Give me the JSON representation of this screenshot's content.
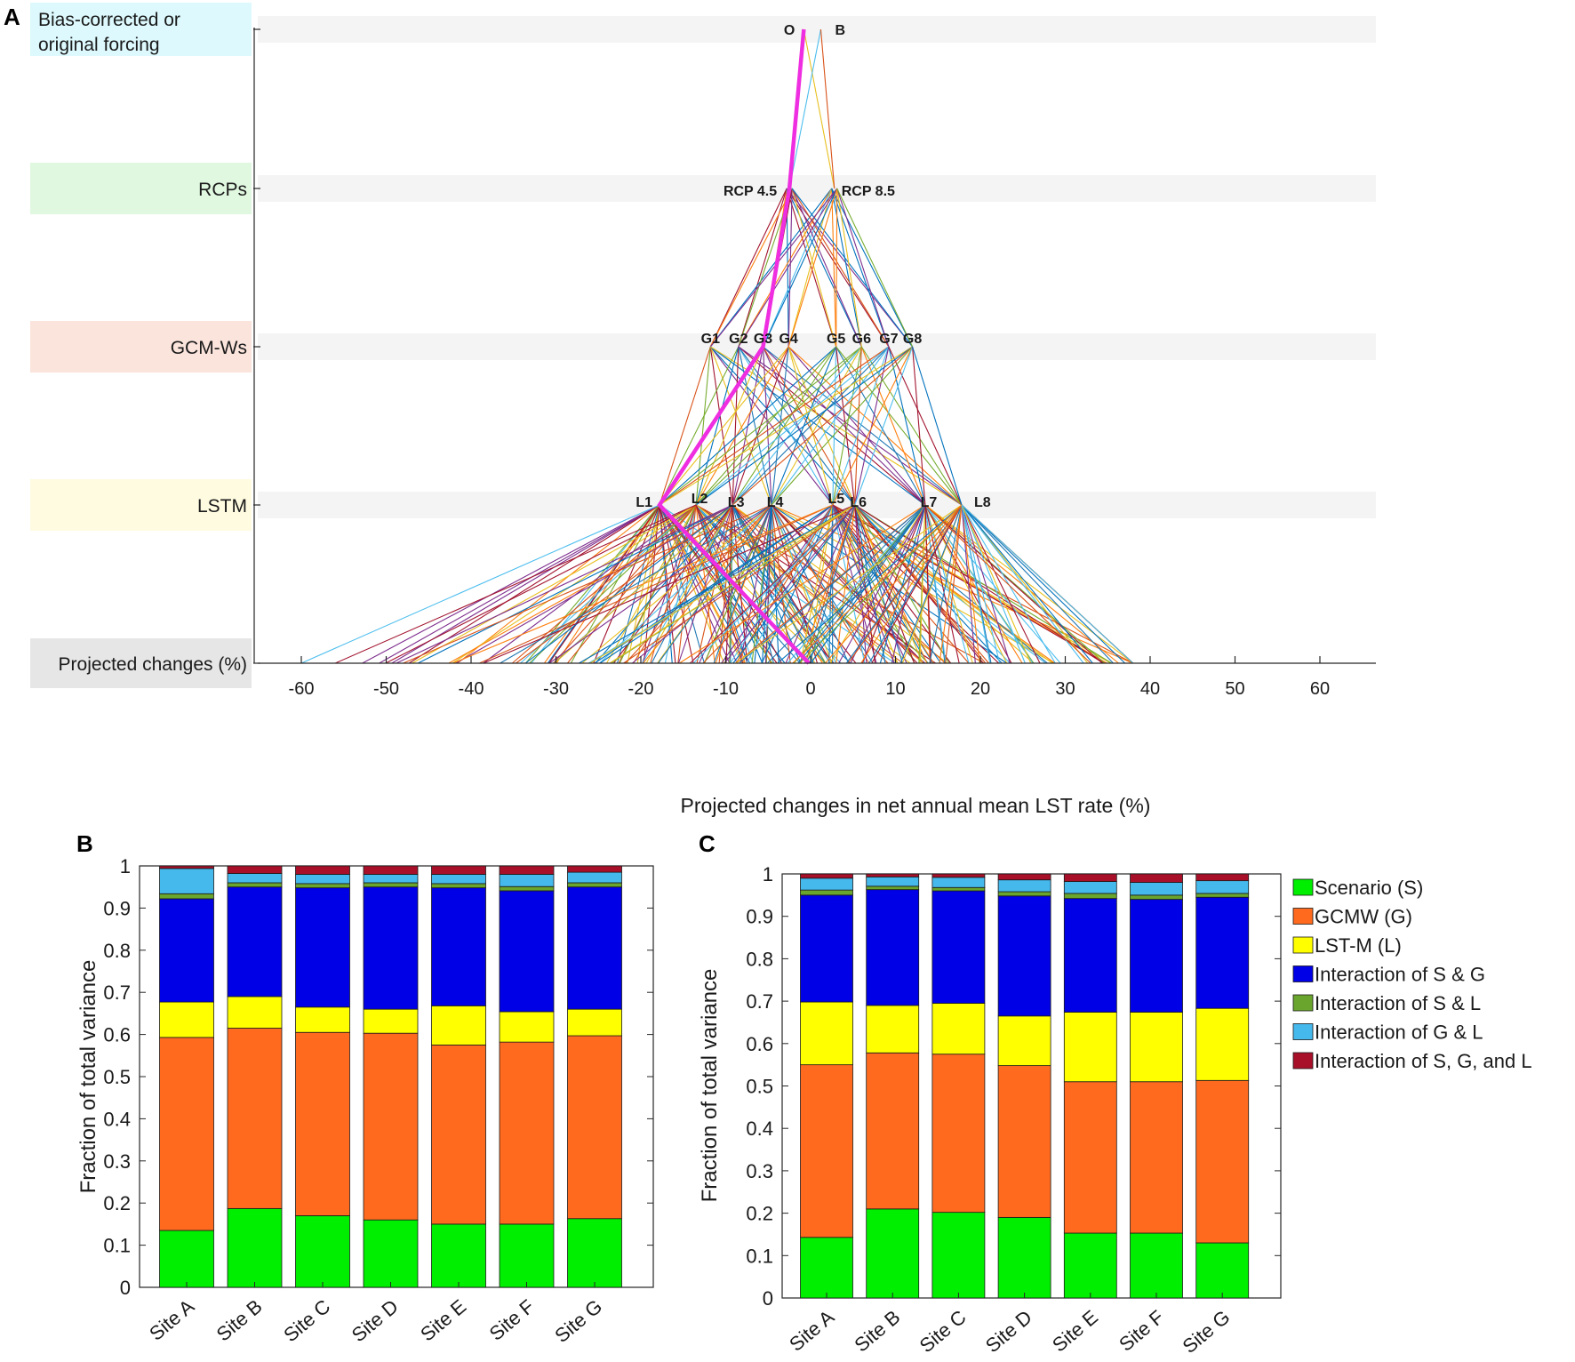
{
  "chart_data": [
    {
      "panel": "A",
      "type": "cascade-tree",
      "xlabel": "Projected changes in net annual mean LST rate (%)",
      "xlim": [
        -66,
        66
      ],
      "xticks": [
        "-60",
        "-50",
        "-40",
        "-30",
        "-20",
        "-10",
        "0",
        "10",
        "20",
        "30",
        "40",
        "50",
        "60"
      ],
      "levels": [
        {
          "label": "Bias-corrected or original forcing",
          "label_lines": [
            "Bias-corrected or",
            "original forcing"
          ],
          "color": "#ddf9fd"
        },
        {
          "label": "RCPs",
          "color": "#e0f7e0"
        },
        {
          "label": "GCM-Ws",
          "color": "#fbe4dc"
        },
        {
          "label": "LSTM",
          "color": "#fefbe0"
        },
        {
          "label": "Projected changes (%)",
          "color": "#e6e6e6"
        }
      ],
      "forcing_nodes": [
        {
          "name": "O",
          "x": -0.8
        },
        {
          "name": "B",
          "x": 1.2
        }
      ],
      "rcp_nodes": [
        {
          "name": "RCP 4.5",
          "x": -2.5
        },
        {
          "name": "RCP 8.5",
          "x": 2.8
        }
      ],
      "gcm_nodes": [
        {
          "name": "G1",
          "x": -11.8
        },
        {
          "name": "G2",
          "x": -8.5
        },
        {
          "name": "G3",
          "x": -5.6
        },
        {
          "name": "G4",
          "x": -2.6
        },
        {
          "name": "G5",
          "x": 3.0
        },
        {
          "name": "G6",
          "x": 6.0
        },
        {
          "name": "G7",
          "x": 9.2
        },
        {
          "name": "G8",
          "x": 12.0
        }
      ],
      "lstm_nodes": [
        {
          "name": "L1",
          "x": -17.8
        },
        {
          "name": "L2",
          "x": -13.5
        },
        {
          "name": "L3",
          "x": -9.2
        },
        {
          "name": "L4",
          "x": -4.6
        },
        {
          "name": "L5",
          "x": 2.6
        },
        {
          "name": "L6",
          "x": 5.2
        },
        {
          "name": "L7",
          "x": 13.5
        },
        {
          "name": "L8",
          "x": 17.8
        }
      ],
      "projected_range": [
        -60,
        38
      ],
      "highlight_path": [
        "O",
        "RCP 4.5",
        "G3",
        "L1",
        -0.2
      ]
    },
    {
      "panel": "B",
      "type": "stacked-bar",
      "ylabel": "Fraction of total variance",
      "ylim": [
        0,
        1
      ],
      "yticks": [
        "0",
        "0.1",
        "0.2",
        "0.3",
        "0.4",
        "0.5",
        "0.6",
        "0.7",
        "0.8",
        "0.9",
        "1"
      ],
      "categories": [
        "Site A",
        "Site B",
        "Site C",
        "Site D",
        "Site E",
        "Site F",
        "Site G"
      ],
      "series": [
        {
          "name": "Scenario (S)",
          "values": [
            0.135,
            0.187,
            0.17,
            0.16,
            0.15,
            0.15,
            0.163
          ]
        },
        {
          "name": "GCMW (G)",
          "values": [
            0.458,
            0.428,
            0.435,
            0.443,
            0.425,
            0.432,
            0.434
          ]
        },
        {
          "name": "LST-M (L)",
          "values": [
            0.084,
            0.075,
            0.06,
            0.057,
            0.093,
            0.072,
            0.063
          ]
        },
        {
          "name": "Interaction of S & G",
          "values": [
            0.245,
            0.26,
            0.283,
            0.29,
            0.28,
            0.287,
            0.29
          ]
        },
        {
          "name": "Interaction of S & L",
          "values": [
            0.012,
            0.01,
            0.01,
            0.01,
            0.01,
            0.01,
            0.01
          ]
        },
        {
          "name": "Interaction of G & L",
          "values": [
            0.06,
            0.022,
            0.022,
            0.02,
            0.022,
            0.029,
            0.025
          ]
        },
        {
          "name": "Interaction of S, G, and L",
          "values": [
            0.006,
            0.018,
            0.02,
            0.02,
            0.02,
            0.02,
            0.015
          ]
        }
      ]
    },
    {
      "panel": "C",
      "type": "stacked-bar",
      "ylabel": "Fraction of total variance",
      "ylim": [
        0,
        1
      ],
      "yticks": [
        "0",
        "0.1",
        "0.2",
        "0.3",
        "0.4",
        "0.5",
        "0.6",
        "0.7",
        "0.8",
        "0.9",
        "1"
      ],
      "categories": [
        "Site A",
        "Site B",
        "Site C",
        "Site D",
        "Site E",
        "Site F",
        "Site G"
      ],
      "series": [
        {
          "name": "Scenario (S)",
          "values": [
            0.143,
            0.21,
            0.202,
            0.19,
            0.153,
            0.153,
            0.13
          ]
        },
        {
          "name": "GCMW (G)",
          "values": [
            0.407,
            0.368,
            0.373,
            0.358,
            0.357,
            0.357,
            0.383
          ]
        },
        {
          "name": "LST-M (L)",
          "values": [
            0.148,
            0.112,
            0.12,
            0.117,
            0.164,
            0.164,
            0.17
          ]
        },
        {
          "name": "Interaction of S & G",
          "values": [
            0.252,
            0.273,
            0.265,
            0.283,
            0.268,
            0.266,
            0.262
          ]
        },
        {
          "name": "Interaction of S & L",
          "values": [
            0.012,
            0.008,
            0.008,
            0.01,
            0.012,
            0.01,
            0.009
          ]
        },
        {
          "name": "Interaction of G & L",
          "values": [
            0.028,
            0.022,
            0.024,
            0.028,
            0.028,
            0.03,
            0.03
          ]
        },
        {
          "name": "Interaction of S, G, and L",
          "values": [
            0.01,
            0.007,
            0.008,
            0.014,
            0.018,
            0.02,
            0.016
          ]
        }
      ]
    }
  ],
  "panel_labels": {
    "a": "A",
    "b": "B",
    "c": "C"
  },
  "legend": {
    "items": [
      {
        "name": "Scenario (S)",
        "color": "#00ee00"
      },
      {
        "name": "GCMW (G)",
        "color": "#ff6a1f"
      },
      {
        "name": "LST-M (L)",
        "color": "#ffff00"
      },
      {
        "name": "Interaction of S & G",
        "color": "#0000e6"
      },
      {
        "name": "Interaction of S & L",
        "color": "#6aa52d"
      },
      {
        "name": "Interaction of G & L",
        "color": "#45b8ec"
      },
      {
        "name": "Interaction of S, G, and L",
        "color": "#a8102a"
      }
    ]
  },
  "colors": {
    "highlight": "#ee2ee0",
    "line_palette": [
      "#1f77b4",
      "#ff7f0e",
      "#e8c020",
      "#7e2f8e",
      "#77ac30",
      "#4dbeee",
      "#a2142f",
      "#0072bd",
      "#d95319"
    ]
  }
}
